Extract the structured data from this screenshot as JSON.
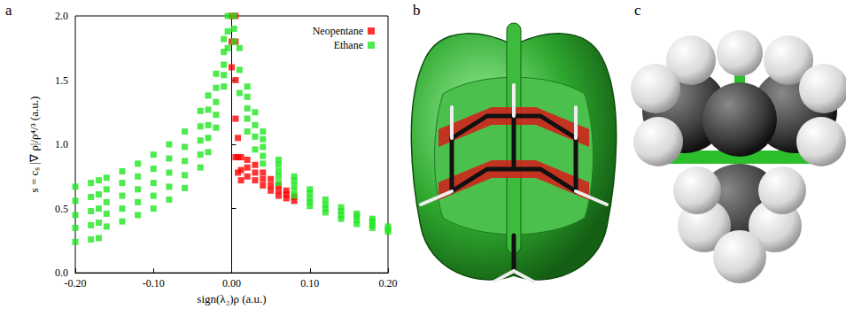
{
  "panel_labels": [
    "a",
    "b",
    "c"
  ],
  "chart_data": {
    "type": "scatter",
    "x_label": "sign(λ₂)ρ (a.u.)",
    "y_label": "s = cₛ |∇ ρ|/ρ⁴/³ (a.u.)",
    "xlim": [
      -0.2,
      0.2
    ],
    "ylim": [
      0,
      2
    ],
    "xticks": [
      {
        "value": -0.2,
        "label": "-0.20"
      },
      {
        "value": -0.1,
        "label": "-0.10"
      },
      {
        "value": 0,
        "label": "0.00"
      },
      {
        "value": 0.1,
        "label": "0.10"
      },
      {
        "value": 0.2,
        "label": "0.20"
      }
    ],
    "yticks": [
      {
        "value": 0,
        "label": "0.0"
      },
      0.5,
      {
        "value": 1,
        "label": "1.0"
      },
      1.5,
      {
        "value": 2,
        "label": "2.0"
      }
    ],
    "grid": false,
    "legend": "upper right",
    "series": [
      {
        "name": "Neopentane",
        "color": "#ff0000",
        "marker": "square",
        "values": [
          [
            0.0,
            1.6
          ],
          [
            0.0,
            1.8
          ],
          [
            0.0,
            2.0
          ],
          [
            0.005,
            0.9
          ],
          [
            0.005,
            1.2
          ],
          [
            0.005,
            1.5
          ],
          [
            0.005,
            1.8
          ],
          [
            0.005,
            2.0
          ],
          [
            0.008,
            0.78
          ],
          [
            0.008,
            0.9
          ],
          [
            0.008,
            1.05
          ],
          [
            0.012,
            0.72
          ],
          [
            0.012,
            0.8
          ],
          [
            0.012,
            0.9
          ],
          [
            0.02,
            0.75
          ],
          [
            0.02,
            0.82
          ],
          [
            0.02,
            0.88
          ],
          [
            0.03,
            0.72
          ],
          [
            0.03,
            0.78
          ],
          [
            0.03,
            0.84
          ],
          [
            0.04,
            0.68
          ],
          [
            0.04,
            0.73
          ],
          [
            0.04,
            0.78
          ],
          [
            0.05,
            0.64
          ],
          [
            0.05,
            0.68
          ],
          [
            0.05,
            0.73
          ],
          [
            0.06,
            0.6
          ],
          [
            0.06,
            0.64
          ],
          [
            0.06,
            0.68
          ],
          [
            0.07,
            0.58
          ],
          [
            0.07,
            0.61
          ],
          [
            0.07,
            0.64
          ],
          [
            0.08,
            0.56
          ],
          [
            0.08,
            0.59
          ]
        ]
      },
      {
        "name": "Ethane",
        "color": "#22e622",
        "marker": "square",
        "values": [
          [
            -0.2,
            0.24
          ],
          [
            -0.2,
            0.35
          ],
          [
            -0.2,
            0.45
          ],
          [
            -0.2,
            0.56
          ],
          [
            -0.2,
            0.67
          ],
          [
            -0.18,
            0.26
          ],
          [
            -0.18,
            0.37
          ],
          [
            -0.18,
            0.48
          ],
          [
            -0.18,
            0.59
          ],
          [
            -0.18,
            0.7
          ],
          [
            -0.17,
            0.27
          ],
          [
            -0.17,
            0.39
          ],
          [
            -0.17,
            0.5
          ],
          [
            -0.17,
            0.61
          ],
          [
            -0.17,
            0.72
          ],
          [
            -0.16,
            0.36
          ],
          [
            -0.16,
            0.46
          ],
          [
            -0.16,
            0.55
          ],
          [
            -0.16,
            0.65
          ],
          [
            -0.16,
            0.74
          ],
          [
            -0.14,
            0.4
          ],
          [
            -0.14,
            0.5
          ],
          [
            -0.14,
            0.6
          ],
          [
            -0.14,
            0.7
          ],
          [
            -0.14,
            0.79
          ],
          [
            -0.12,
            0.45
          ],
          [
            -0.12,
            0.55
          ],
          [
            -0.12,
            0.65
          ],
          [
            -0.12,
            0.75
          ],
          [
            -0.12,
            0.85
          ],
          [
            -0.1,
            0.5
          ],
          [
            -0.1,
            0.6
          ],
          [
            -0.1,
            0.7
          ],
          [
            -0.1,
            0.81
          ],
          [
            -0.1,
            0.92
          ],
          [
            -0.08,
            0.57
          ],
          [
            -0.08,
            0.67
          ],
          [
            -0.08,
            0.78
          ],
          [
            -0.08,
            0.89
          ],
          [
            -0.08,
            1.0
          ],
          [
            -0.06,
            0.66
          ],
          [
            -0.06,
            0.76
          ],
          [
            -0.06,
            0.87
          ],
          [
            -0.06,
            0.98
          ],
          [
            -0.06,
            1.1
          ],
          [
            -0.04,
            0.82
          ],
          [
            -0.04,
            0.92
          ],
          [
            -0.04,
            1.03
          ],
          [
            -0.04,
            1.14
          ],
          [
            -0.04,
            1.26
          ],
          [
            -0.03,
            0.94
          ],
          [
            -0.03,
            1.05
          ],
          [
            -0.03,
            1.15
          ],
          [
            -0.03,
            1.27
          ],
          [
            -0.03,
            1.38
          ],
          [
            -0.02,
            1.13
          ],
          [
            -0.02,
            1.23
          ],
          [
            -0.02,
            1.33
          ],
          [
            -0.02,
            1.44
          ],
          [
            -0.02,
            1.55
          ],
          [
            -0.01,
            1.45
          ],
          [
            -0.01,
            1.54
          ],
          [
            -0.01,
            1.62
          ],
          [
            -0.01,
            1.72
          ],
          [
            -0.01,
            1.82
          ],
          [
            -0.005,
            1.75
          ],
          [
            -0.005,
            1.88
          ],
          [
            -0.005,
            2.0
          ],
          [
            0.003,
            1.8
          ],
          [
            0.003,
            1.9
          ],
          [
            0.003,
            2.0
          ],
          [
            0.01,
            1.4
          ],
          [
            0.01,
            1.58
          ],
          [
            0.01,
            1.75
          ],
          [
            0.02,
            1.1
          ],
          [
            0.02,
            1.2
          ],
          [
            0.02,
            1.28
          ],
          [
            0.02,
            1.37
          ],
          [
            0.02,
            1.45
          ],
          [
            0.03,
            0.96
          ],
          [
            0.03,
            1.06
          ],
          [
            0.03,
            1.15
          ],
          [
            0.03,
            1.25
          ],
          [
            0.04,
            0.85
          ],
          [
            0.04,
            0.91
          ],
          [
            0.04,
            0.98
          ],
          [
            0.04,
            1.04
          ],
          [
            0.04,
            1.1
          ],
          [
            0.06,
            0.7
          ],
          [
            0.06,
            0.75
          ],
          [
            0.06,
            0.79
          ],
          [
            0.06,
            0.84
          ],
          [
            0.06,
            0.88
          ],
          [
            0.08,
            0.6
          ],
          [
            0.08,
            0.64
          ],
          [
            0.08,
            0.68
          ],
          [
            0.08,
            0.72
          ],
          [
            0.08,
            0.75
          ],
          [
            0.1,
            0.52
          ],
          [
            0.1,
            0.55
          ],
          [
            0.1,
            0.58
          ],
          [
            0.1,
            0.62
          ],
          [
            0.1,
            0.65
          ],
          [
            0.12,
            0.47
          ],
          [
            0.12,
            0.5
          ],
          [
            0.12,
            0.53
          ],
          [
            0.12,
            0.57
          ],
          [
            0.14,
            0.42
          ],
          [
            0.14,
            0.45
          ],
          [
            0.14,
            0.48
          ],
          [
            0.14,
            0.51
          ],
          [
            0.16,
            0.38
          ],
          [
            0.16,
            0.41
          ],
          [
            0.16,
            0.44
          ],
          [
            0.16,
            0.46
          ],
          [
            0.18,
            0.35
          ],
          [
            0.18,
            0.37
          ],
          [
            0.18,
            0.4
          ],
          [
            0.18,
            0.42
          ],
          [
            0.2,
            0.32
          ],
          [
            0.2,
            0.34
          ],
          [
            0.2,
            0.36
          ]
        ]
      }
    ]
  }
}
